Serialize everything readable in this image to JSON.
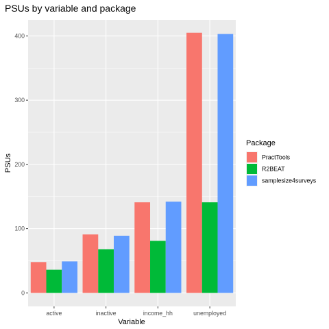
{
  "chart_data": {
    "type": "bar",
    "title": "PSUs by variable and package",
    "xlabel": "Variable",
    "ylabel": "PSUs",
    "categories": [
      "active",
      "inactive",
      "income_hh",
      "unemployed"
    ],
    "series": [
      {
        "name": "PractTools",
        "values": [
          48,
          91,
          141,
          405
        ],
        "color": "#F8766D"
      },
      {
        "name": "R2BEAT",
        "values": [
          36,
          68,
          81,
          141
        ],
        "color": "#00BA38"
      },
      {
        "name": "samplesize4surveys",
        "values": [
          49,
          89,
          142,
          403
        ],
        "color": "#619CFF"
      }
    ],
    "ylim": [
      -21,
      425
    ],
    "yticks": [
      0,
      100,
      200,
      300,
      400
    ],
    "grid": true,
    "legend": {
      "title": "Package",
      "position": "right"
    },
    "panel_color": "#EBEBEB"
  }
}
